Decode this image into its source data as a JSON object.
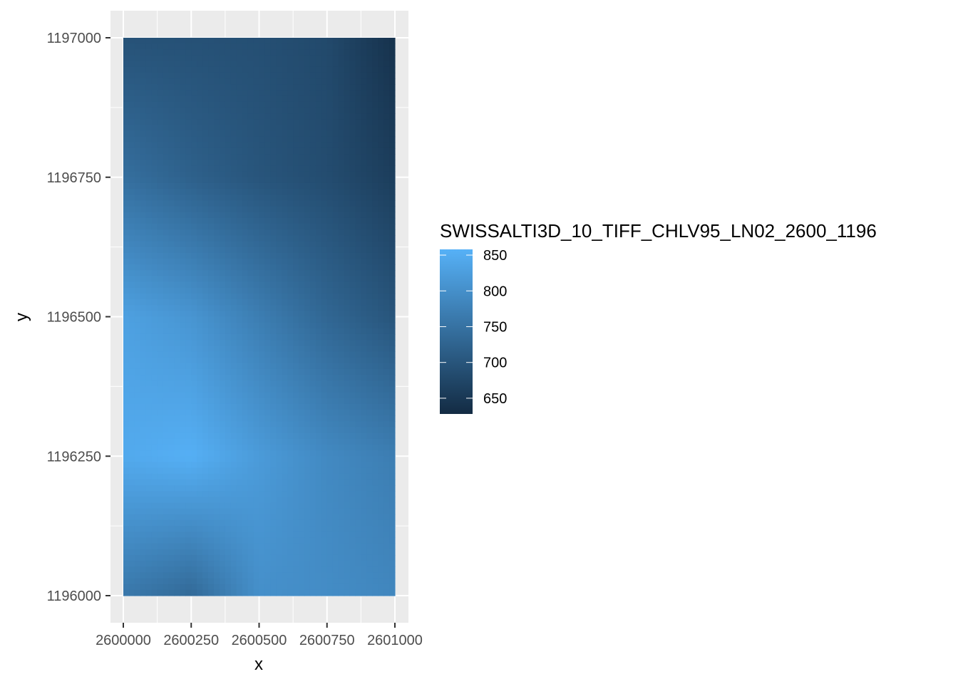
{
  "chart_data": {
    "type": "heatmap",
    "title": "",
    "xlabel": "x",
    "ylabel": "y",
    "xlim": [
      2600000,
      2601000
    ],
    "ylim": [
      1196000,
      1197000
    ],
    "x_ticks": [
      "2600000",
      "2600250",
      "2600500",
      "2600750",
      "2601000"
    ],
    "y_ticks": [
      "1197000",
      "1196750",
      "1196500",
      "1196250",
      "1196000"
    ],
    "x_tick_values": [
      2600000,
      2600250,
      2600500,
      2600750,
      2601000
    ],
    "y_tick_values": [
      1197000,
      1196750,
      1196500,
      1196250,
      1196000
    ],
    "fill_variable": "SWISSALTI3D_10_TIFF_CHLV95_LN02_2600_1196",
    "fill_range": [
      628,
      858
    ],
    "legend_ticks": [
      "850",
      "800",
      "750",
      "700",
      "650"
    ],
    "legend_tick_values": [
      850,
      800,
      750,
      700,
      650
    ],
    "legend_position": "right",
    "colors": {
      "low": "#132B43",
      "high": "#56B1F7",
      "panel_background": "#EBEBEB",
      "grid": "#FFFFFF"
    },
    "elevation_grid": {
      "x": [
        2600000,
        2600250,
        2600500,
        2600750,
        2601000
      ],
      "y": [
        1197000,
        1196750,
        1196500,
        1196250,
        1196000
      ],
      "z": [
        [
          695,
          693,
          690,
          680,
          640
        ],
        [
          745,
          720,
          700,
          685,
          660
        ],
        [
          830,
          810,
          770,
          730,
          700
        ],
        [
          845,
          855,
          820,
          790,
          770
        ],
        [
          760,
          735,
          800,
          795,
          785
        ]
      ]
    }
  }
}
